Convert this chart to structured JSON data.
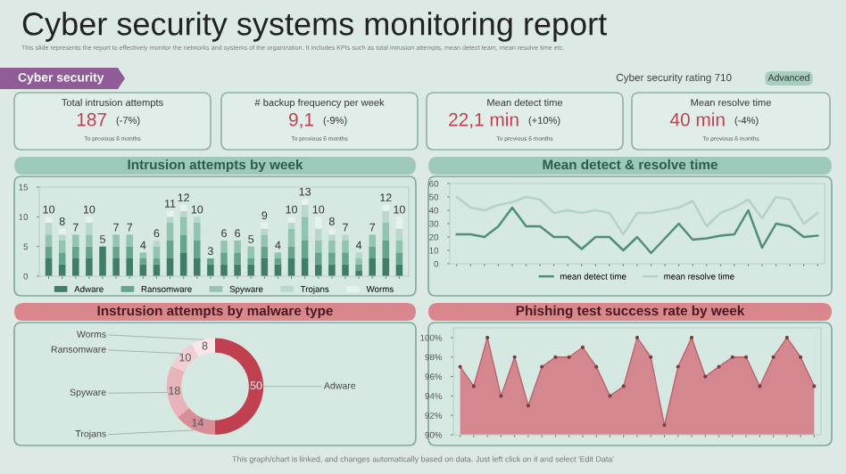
{
  "chart_data": [
    {
      "type": "other",
      "title": "Cyber security systems monitoring report",
      "subtitle": "This slide represents the report to effectively monitor the networks and systems of the organization. It includes KPIs such as total intrusion attempts, mean detect team, mean resolve time etc.",
      "annotations": [
        "Cyber security",
        "Cyber security rating 710",
        "Advanced",
        "Total intrusion attempts",
        "187",
        "(-7%)",
        "To previous 6 months",
        "# backup frequency per week",
        "9,1",
        "(-9%)",
        "To previous 6 months",
        "Mean detect time",
        "22,1 min",
        "(+10%)",
        "To previous 6 months",
        "Mean resolve time",
        "40 min",
        "(-4%)",
        "To previous 6 months",
        "This graph/chart is linked, and changes automatically based on data. Just left click on it and select 'Edit Data'"
      ]
    },
    {
      "type": "bar",
      "title": "Intrusion attempts by week",
      "stacked": true,
      "legend": "bottom",
      "grid": false,
      "categories": [
        null,
        null,
        null,
        null,
        null,
        null,
        null,
        null,
        null,
        null,
        null,
        null,
        null,
        null,
        null,
        null,
        null,
        null,
        null,
        null,
        null,
        null,
        null,
        null,
        null,
        null,
        null
      ],
      "ylim": [
        0,
        15
      ],
      "yticks": [
        0,
        5,
        10,
        15
      ],
      "series": [
        {
          "name": "Adware",
          "color": "#3f7d66",
          "values": [
            3,
            2,
            3,
            3,
            5,
            3,
            3,
            2,
            2,
            3,
            4,
            3,
            2,
            2,
            2,
            2,
            3,
            2,
            3,
            3,
            2,
            2,
            2,
            1,
            3,
            3,
            2
          ]
        },
        {
          "name": "Ransomware",
          "color": "#66a58c",
          "values": [
            2,
            2,
            2,
            2,
            0,
            2,
            2,
            1,
            1,
            3,
            3,
            3,
            1,
            2,
            2,
            1,
            2,
            1,
            2,
            3,
            2,
            2,
            2,
            1,
            2,
            3,
            2
          ]
        },
        {
          "name": "Spyware",
          "color": "#93c4b0",
          "values": [
            2,
            2,
            2,
            2,
            0,
            2,
            2,
            1,
            2,
            3,
            3,
            3,
            0,
            2,
            2,
            2,
            2,
            1,
            3,
            4,
            2,
            2,
            2,
            1,
            2,
            3,
            2
          ]
        },
        {
          "name": "Trojans",
          "color": "#b9d8cb",
          "values": [
            2,
            1,
            0,
            2,
            0,
            0,
            0,
            0,
            1,
            1,
            1,
            1,
            0,
            0,
            0,
            0,
            1,
            0,
            1,
            2,
            2,
            1,
            1,
            1,
            0,
            2,
            2
          ]
        },
        {
          "name": "Worms",
          "color": "#e6f2ed",
          "values": [
            1,
            1,
            0,
            1,
            0,
            0,
            0,
            0,
            0,
            1,
            1,
            0,
            0,
            0,
            0,
            0,
            1,
            0,
            1,
            1,
            2,
            1,
            0,
            0,
            0,
            1,
            2
          ]
        }
      ],
      "totals": [
        "10",
        "8",
        "7",
        "10",
        "5",
        "7",
        "7",
        "4",
        "6",
        "11",
        "12",
        "10",
        "3",
        "6",
        "6",
        "5",
        "9",
        "4",
        "10",
        "13",
        "10",
        "8",
        "7",
        "4",
        "7",
        "12",
        "10"
      ]
    },
    {
      "type": "line",
      "title": "Mean detect & resolve time",
      "legend": "bottom",
      "grid": false,
      "marker": "none",
      "line_style": "solid",
      "categories": [
        null,
        null,
        null,
        null,
        null,
        null,
        null,
        null,
        null,
        null,
        null,
        null,
        null,
        null,
        null,
        null,
        null,
        null,
        null,
        null,
        null,
        null,
        null,
        null,
        null,
        null,
        null
      ],
      "ylim": [
        0,
        60
      ],
      "yticks": [
        0,
        10,
        20,
        30,
        40,
        50,
        60
      ],
      "series": [
        {
          "name": "mean detect time",
          "color": "#4f8f77",
          "values": [
            22,
            22,
            20,
            28,
            42,
            28,
            28,
            20,
            20,
            11,
            20,
            20,
            10,
            20,
            8,
            19,
            30,
            18,
            19,
            21,
            22,
            40,
            12,
            30,
            28,
            20,
            21
          ]
        },
        {
          "name": "mean resolve time",
          "color": "#b3d3c6",
          "values": [
            50,
            42,
            40,
            44,
            46,
            50,
            48,
            38,
            40,
            38,
            40,
            38,
            22,
            38,
            38,
            40,
            42,
            47,
            28,
            38,
            42,
            48,
            34,
            50,
            48,
            30,
            38
          ]
        }
      ]
    },
    {
      "type": "donut",
      "title": "Instrusion attempts by malware type",
      "data_labels": true,
      "categories": [
        "Adware",
        "Trojans",
        "Spyware",
        "Ransomware",
        "Worms"
      ],
      "values": [
        50,
        14,
        18,
        10,
        8
      ],
      "colors": [
        "#c1404f",
        "#d98d96",
        "#e8b4ba",
        "#f2cfd3",
        "#f9e6e8"
      ]
    },
    {
      "type": "area",
      "title": "Phishing test success rate by week",
      "grid": false,
      "marker": "circle",
      "categories": [
        null,
        null,
        null,
        null,
        null,
        null,
        null,
        null,
        null,
        null,
        null,
        null,
        null,
        null,
        null,
        null,
        null,
        null,
        null,
        null,
        null,
        null,
        null,
        null,
        null,
        null,
        null
      ],
      "ylim": [
        90,
        101
      ],
      "yticks": [
        {
          "value": 90,
          "label": "90%"
        },
        {
          "value": 92,
          "label": "92%"
        },
        {
          "value": 94,
          "label": "94%"
        },
        {
          "value": 96,
          "label": "96%"
        },
        {
          "value": 98,
          "label": "98%"
        },
        {
          "value": 100,
          "label": "100%"
        }
      ],
      "series": [
        {
          "color": "#d4878f",
          "values": [
            97,
            95,
            100,
            94,
            98,
            93,
            97,
            98,
            98,
            99,
            97,
            94,
            95,
            100,
            98,
            91,
            97,
            100,
            96,
            97,
            98,
            98,
            95,
            98,
            100,
            98,
            95
          ]
        }
      ]
    }
  ]
}
